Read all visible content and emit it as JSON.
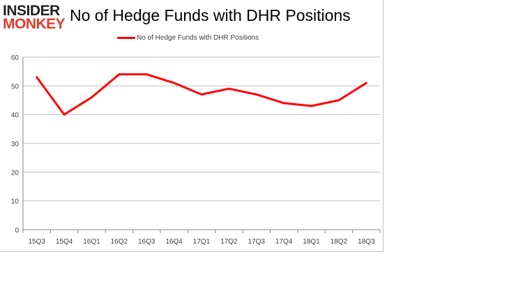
{
  "logo": {
    "line1": "INSIDER",
    "line2": "MONKEY"
  },
  "chart_data": {
    "type": "line",
    "title": "No of Hedge Funds with DHR Positions",
    "categories": [
      "15Q3",
      "15Q4",
      "16Q1",
      "16Q2",
      "16Q3",
      "16Q4",
      "17Q1",
      "17Q2",
      "17Q3",
      "17Q4",
      "18Q1",
      "18Q2",
      "18Q3"
    ],
    "series": [
      {
        "name": "No of Hedge Funds with DHR Positions",
        "values": [
          53,
          40,
          46,
          54,
          54,
          51,
          47,
          49,
          47,
          44,
          43,
          45,
          51
        ],
        "color": "#ff0000"
      }
    ],
    "yticks": [
      "0",
      "10",
      "20",
      "30",
      "40",
      "50",
      "60"
    ],
    "ylim": [
      0,
      60
    ],
    "grid": true,
    "legend": "top"
  }
}
